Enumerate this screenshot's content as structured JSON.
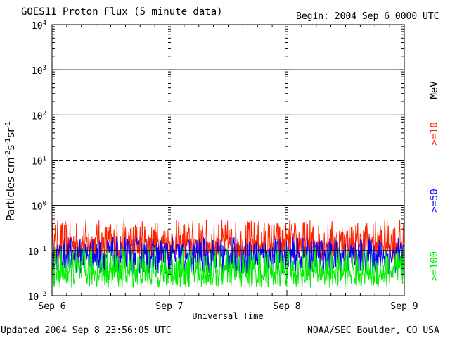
{
  "header": {
    "title": "GOES11 Proton Flux (5 minute data)",
    "begin": "Begin: 2004 Sep 6 0000 UTC"
  },
  "footer": {
    "updated": "Updated 2004 Sep  8 23:56:05 UTC",
    "credit": "NOAA/SEC Boulder, CO USA"
  },
  "chart_data": {
    "type": "line",
    "title": "GOES11 Proton Flux (5 minute data)",
    "xlabel": "Universal Time",
    "ylabel": "Particles cm-2s-1sr-1",
    "yscale": "log",
    "ylim": [
      0.01,
      10000
    ],
    "xlim": [
      0,
      72
    ],
    "x_unit": "hours since Sep 6 0000 UTC",
    "x_ticks": [
      {
        "x": 0,
        "label": "Sep 6"
      },
      {
        "x": 24,
        "label": "Sep 7"
      },
      {
        "x": 48,
        "label": "Sep 8"
      },
      {
        "x": 72,
        "label": "Sep 9"
      }
    ],
    "y_ticks": [
      {
        "exp": "-2",
        "value": 0.01
      },
      {
        "exp": "-1",
        "value": 0.1
      },
      {
        "exp": "0",
        "value": 1
      },
      {
        "exp": "1",
        "value": 10
      },
      {
        "exp": "2",
        "value": 100
      },
      {
        "exp": "3",
        "value": 1000
      },
      {
        "exp": "4",
        "value": 10000
      }
    ],
    "threshold_lines": [
      {
        "value": 10,
        "style": "dashed"
      },
      {
        "value": 1,
        "style": "solid"
      },
      {
        "value": 100,
        "style": "solid"
      },
      {
        "value": 1000,
        "style": "solid"
      }
    ],
    "grid": true,
    "legend_unit": "MeV",
    "series": [
      {
        "name": ">=10",
        "color": "#ff2200",
        "typical": 0.15,
        "min": 0.06,
        "max": 0.5
      },
      {
        "name": ">=50",
        "color": "#0000ff",
        "typical": 0.08,
        "min": 0.03,
        "max": 0.2
      },
      {
        "name": ">=100",
        "color": "#00ee00",
        "typical": 0.035,
        "min": 0.015,
        "max": 0.12
      }
    ]
  }
}
